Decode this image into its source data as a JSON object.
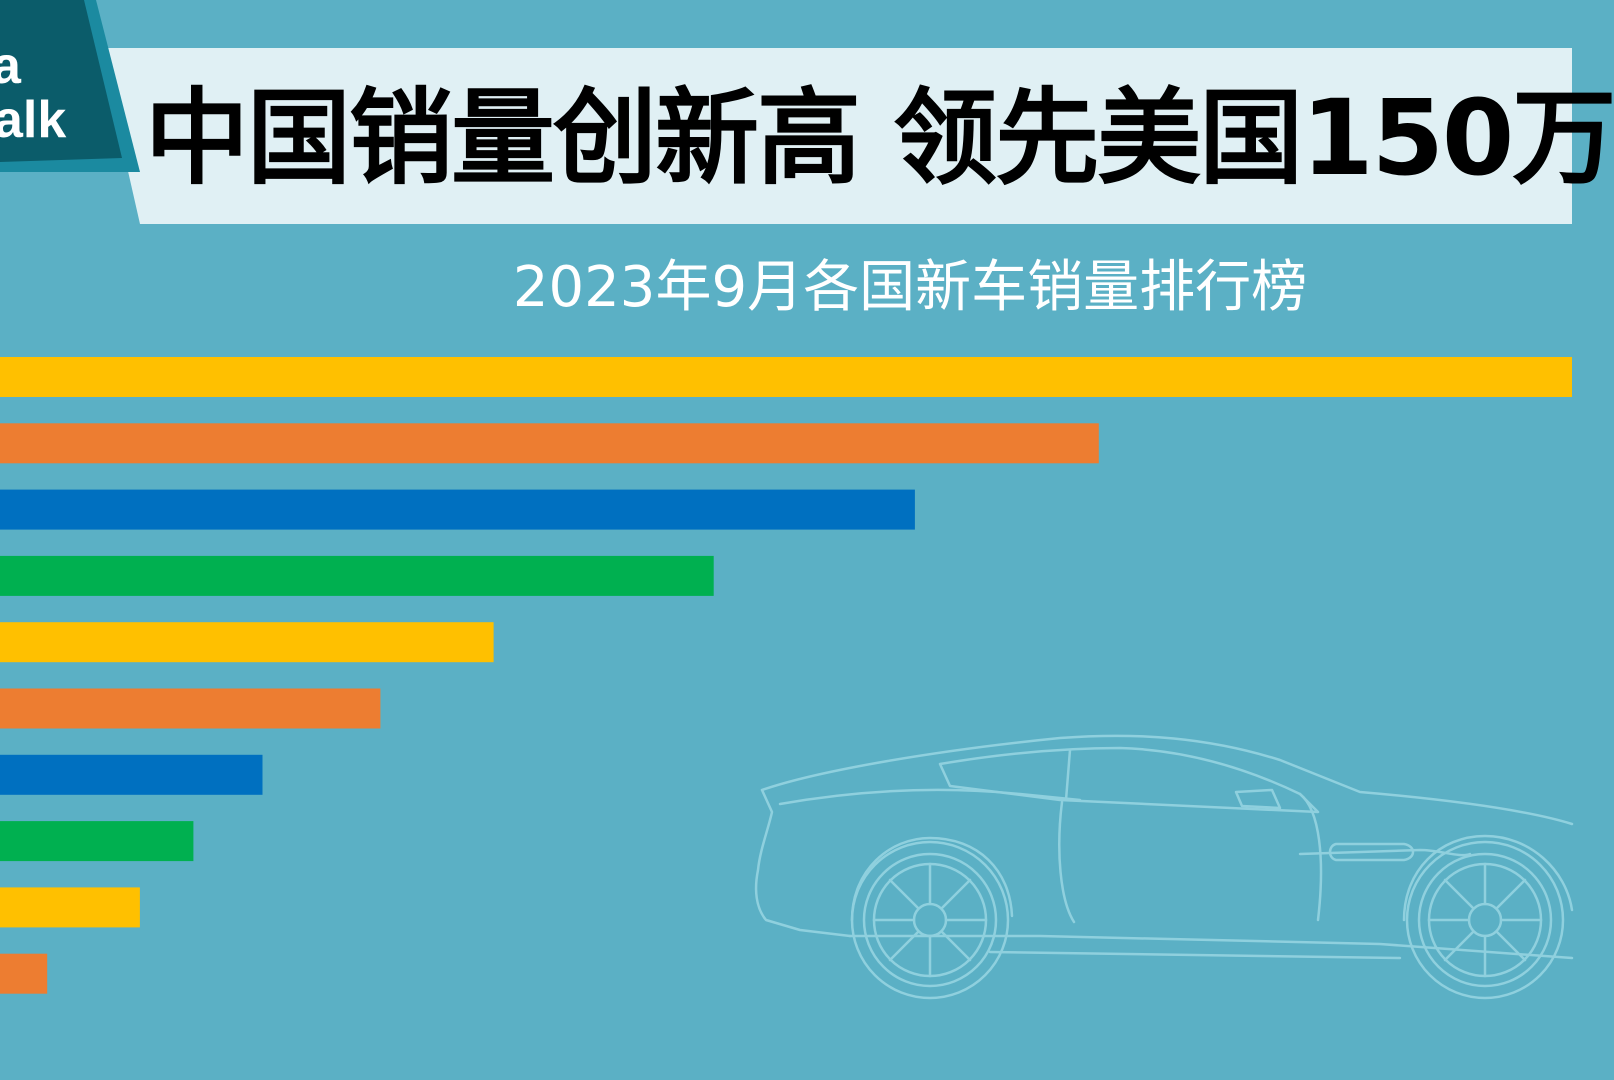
{
  "logo": {
    "line1": "a",
    "line2": "alk"
  },
  "title": "中国销量创新高 领先美国150万",
  "subtitle": "2023年9月各国新车销量排行榜",
  "colors": {
    "background": "#5bb0c5",
    "title_band": "#e0f0f4",
    "logo_badge": "#0b5c6a",
    "bar_yellow": "#ffc000",
    "bar_orange": "#ed7d31",
    "bar_blue": "#0070c0",
    "bar_green": "#00b050"
  },
  "decoration": {
    "icon": "sports-car-outline-icon"
  },
  "chart_data": {
    "type": "bar",
    "orientation": "horizontal",
    "title": "2023年9月各国新车销量排行榜",
    "values": [
      100,
      69.9,
      58.2,
      45.4,
      31.4,
      24.2,
      16.7,
      12.3,
      8.9,
      3.0
    ],
    "colors": [
      "#ffc000",
      "#ed7d31",
      "#0070c0",
      "#00b050",
      "#ffc000",
      "#ed7d31",
      "#0070c0",
      "#00b050",
      "#ffc000",
      "#ed7d31"
    ],
    "xlim": [
      0,
      100
    ],
    "grid": false,
    "legend": "none"
  }
}
